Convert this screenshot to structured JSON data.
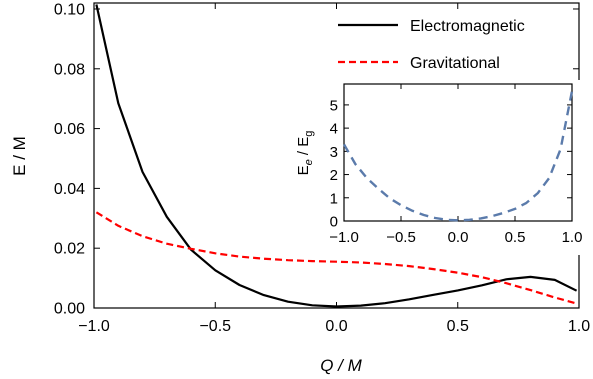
{
  "chart_data": [
    {
      "type": "line",
      "title": "",
      "xlabel": "Q / M",
      "ylabel": "E / M",
      "xlim": [
        -1.0,
        1.0
      ],
      "ylim": [
        0.0,
        0.102
      ],
      "xticks": [
        -1.0,
        -0.5,
        0.0,
        0.5,
        1.0
      ],
      "xtick_labels": [
        "−1.0",
        "−0.5",
        "0.0",
        "0.5",
        "1.0"
      ],
      "yticks": [
        0.0,
        0.02,
        0.04,
        0.06,
        0.08,
        0.1
      ],
      "ytick_labels": [
        "0.00",
        "0.02",
        "0.04",
        "0.06",
        "0.08",
        "0.10"
      ],
      "legend_position": "top-right",
      "series": [
        {
          "name": "Electromagnetic",
          "color": "#000000",
          "dash": "solid",
          "x": [
            -0.99,
            -0.9,
            -0.8,
            -0.7,
            -0.6,
            -0.5,
            -0.4,
            -0.3,
            -0.2,
            -0.1,
            0.0,
            0.1,
            0.2,
            0.3,
            0.4,
            0.5,
            0.6,
            0.7,
            0.8,
            0.9,
            0.99
          ],
          "y": [
            0.1015,
            0.0685,
            0.0455,
            0.0305,
            0.0195,
            0.0126,
            0.0077,
            0.0043,
            0.0021,
            0.0009,
            0.0005,
            0.0008,
            0.0016,
            0.0029,
            0.0044,
            0.0059,
            0.0076,
            0.0096,
            0.0104,
            0.0094,
            0.0058
          ]
        },
        {
          "name": "Gravitational",
          "color": "#ff0000",
          "dash": "dashed",
          "x": [
            -0.99,
            -0.9,
            -0.8,
            -0.7,
            -0.6,
            -0.5,
            -0.4,
            -0.3,
            -0.2,
            -0.1,
            0.0,
            0.1,
            0.2,
            0.3,
            0.4,
            0.5,
            0.6,
            0.7,
            0.8,
            0.9,
            0.99
          ],
          "y": [
            0.032,
            0.0275,
            0.024,
            0.0215,
            0.0198,
            0.0183,
            0.0172,
            0.0165,
            0.016,
            0.0157,
            0.0155,
            0.0152,
            0.0147,
            0.014,
            0.013,
            0.0118,
            0.0103,
            0.0083,
            0.006,
            0.0035,
            0.0015
          ]
        }
      ]
    },
    {
      "type": "line",
      "title": "",
      "xlabel": "",
      "ylabel": "E_e / E_g",
      "ylabel_main": "E",
      "ylabel_sub_e": "e",
      "ylabel_sep": " / E",
      "ylabel_sub_g": "g",
      "xlim": [
        -1.0,
        1.0
      ],
      "ylim": [
        0,
        5.9
      ],
      "xticks": [
        -1.0,
        -0.5,
        0.0,
        0.5,
        1.0
      ],
      "xtick_labels": [
        "−1.0",
        "−0.5",
        "0.0",
        "0.5",
        "1.0"
      ],
      "yticks": [
        0,
        1,
        2,
        3,
        4,
        5
      ],
      "ytick_labels": [
        "0",
        "1",
        "2",
        "3",
        "4",
        "5"
      ],
      "series": [
        {
          "color": "#5b7bab",
          "dash": "dashed",
          "x": [
            -1.0,
            -0.9,
            -0.8,
            -0.7,
            -0.6,
            -0.5,
            -0.4,
            -0.3,
            -0.2,
            -0.1,
            0.0,
            0.1,
            0.2,
            0.3,
            0.4,
            0.5,
            0.6,
            0.7,
            0.8,
            0.9,
            1.0
          ],
          "y": [
            3.3,
            2.45,
            1.85,
            1.4,
            0.98,
            0.68,
            0.44,
            0.26,
            0.13,
            0.05,
            0.03,
            0.05,
            0.11,
            0.21,
            0.35,
            0.52,
            0.78,
            1.2,
            1.85,
            3.1,
            5.6
          ]
        }
      ]
    }
  ]
}
